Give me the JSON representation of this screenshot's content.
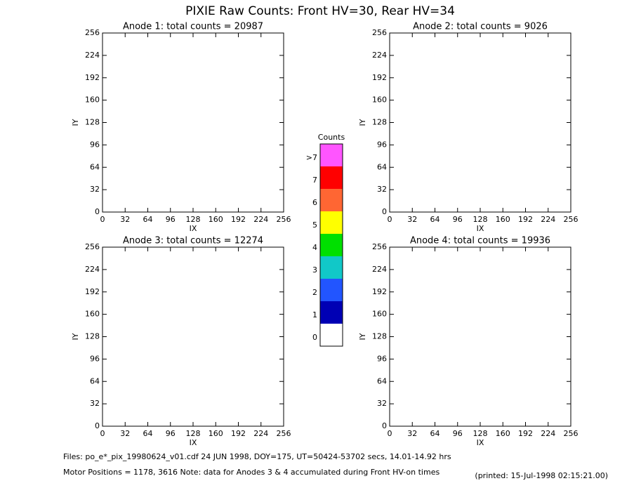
{
  "title": "PIXIE Raw Counts:  Front HV=30, Rear HV=34",
  "chart_data": [
    {
      "type": "heatmap",
      "title": "Anode 1: total counts = 20987",
      "xlabel": "IX",
      "ylabel": "IY",
      "xlim": [
        0,
        256
      ],
      "ylim": [
        0,
        256
      ],
      "xticks": [
        0,
        32,
        64,
        96,
        128,
        160,
        192,
        224,
        256
      ],
      "yticks": [
        0,
        32,
        64,
        96,
        128,
        160,
        192,
        224,
        256
      ]
    },
    {
      "type": "heatmap",
      "title": "Anode 2: total counts = 9026",
      "xlabel": "IX",
      "ylabel": "IY",
      "xlim": [
        0,
        256
      ],
      "ylim": [
        0,
        256
      ],
      "xticks": [
        0,
        32,
        64,
        96,
        128,
        160,
        192,
        224,
        256
      ],
      "yticks": [
        0,
        32,
        64,
        96,
        128,
        160,
        192,
        224,
        256
      ]
    },
    {
      "type": "heatmap",
      "title": "Anode 3: total counts = 12274",
      "xlabel": "IX",
      "ylabel": "IY",
      "xlim": [
        0,
        256
      ],
      "ylim": [
        0,
        256
      ],
      "xticks": [
        0,
        32,
        64,
        96,
        128,
        160,
        192,
        224,
        256
      ],
      "yticks": [
        0,
        32,
        64,
        96,
        128,
        160,
        192,
        224,
        256
      ]
    },
    {
      "type": "heatmap",
      "title": "Anode 4: total counts = 19936",
      "xlabel": "IX",
      "ylabel": "IY",
      "xlim": [
        0,
        256
      ],
      "ylim": [
        0,
        256
      ],
      "xticks": [
        0,
        32,
        64,
        96,
        128,
        160,
        192,
        224,
        256
      ],
      "yticks": [
        0,
        32,
        64,
        96,
        128,
        160,
        192,
        224,
        256
      ]
    }
  ],
  "colorbar": {
    "title": "Counts",
    "labels": [
      ">7",
      "7",
      "6",
      "5",
      "4",
      "3",
      "2",
      "1",
      "0"
    ],
    "colors": [
      "#ff55ff",
      "#ff0000",
      "#ff6633",
      "#ffff00",
      "#00e000",
      "#11c8c8",
      "#2255ff",
      "#0000b4",
      "#ffffff"
    ]
  },
  "footer": {
    "files": "Files: po_e*_pix_19980624_v01.cdf    24 JUN 1998, DOY=175, UT=50424-53702 secs, 14.01-14.92 hrs",
    "motor": "Motor Positions = 1178, 3616    Note: data for Anodes 3 & 4 accumulated during Front HV-on times",
    "printed": "(printed: 15-Jul-1998 02:15:21.00)"
  }
}
